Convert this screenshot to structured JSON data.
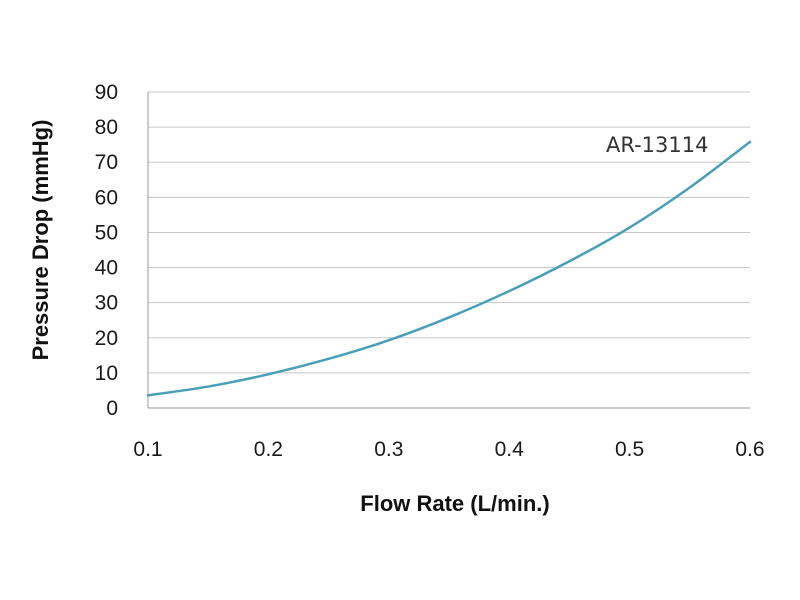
{
  "chart_data": {
    "type": "line",
    "title": "",
    "xlabel": "Flow Rate (L/min.)",
    "ylabel": "Pressure Drop (mmHg)",
    "xlim": [
      0.1,
      0.6
    ],
    "ylim": [
      0,
      90
    ],
    "x_ticks": [
      0.1,
      0.2,
      0.3,
      0.4,
      0.5,
      0.6
    ],
    "x_tick_labels": [
      "0.1",
      "0.2",
      "0.3",
      "0.4",
      "0.5",
      "0.6"
    ],
    "y_ticks": [
      0,
      10,
      20,
      30,
      40,
      50,
      60,
      70,
      80,
      90
    ],
    "y_tick_labels": [
      "0",
      "10",
      "20",
      "30",
      "40",
      "50",
      "60",
      "70",
      "80",
      "90"
    ],
    "grid": "horizontal",
    "legend": "none",
    "series": [
      {
        "name": "AR-13114",
        "color": "#4a9fb8",
        "x": [
          0.1,
          0.15,
          0.2,
          0.25,
          0.3,
          0.35,
          0.4,
          0.45,
          0.5,
          0.55,
          0.6
        ],
        "values": [
          3.6,
          6.1,
          9.6,
          14.0,
          19.3,
          25.8,
          33.3,
          41.8,
          51.4,
          62.8,
          75.8
        ]
      }
    ],
    "colors": {
      "grid": "#c8c8c8",
      "axis": "#9a9a9a",
      "line": "#4a9fb8"
    }
  }
}
